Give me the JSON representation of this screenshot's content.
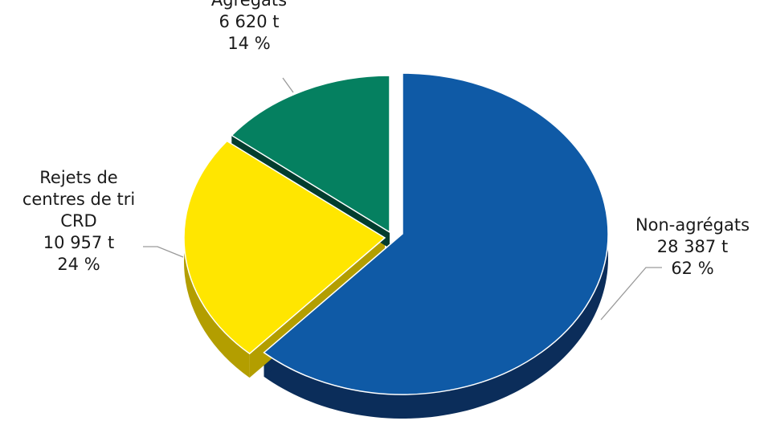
{
  "chart_data": {
    "type": "pie",
    "style": "3d-exploded",
    "title": "",
    "slices": [
      {
        "label": "Non-agrégats",
        "value": 28387,
        "value_text": "28 387 t",
        "percent": 62,
        "percent_text": "62 %",
        "label_lines": [
          "Non-agrégats"
        ],
        "color": "#0f5aa6",
        "side_color": "#0b2d5a"
      },
      {
        "label": "Rejets de centres de tri CRD",
        "value": 10957,
        "value_text": "10 957 t",
        "percent": 24,
        "percent_text": "24 %",
        "label_lines": [
          "Rejets de",
          "centres de tri",
          "CRD"
        ],
        "color": "#ffe600",
        "side_color": "#b39e00"
      },
      {
        "label": "Agrégats",
        "value": 6620,
        "value_text": "6 620 t",
        "percent": 14,
        "percent_text": "14 %",
        "label_lines": [
          "Agrégats"
        ],
        "color": "#058060",
        "side_color": "#033d2e"
      }
    ]
  }
}
